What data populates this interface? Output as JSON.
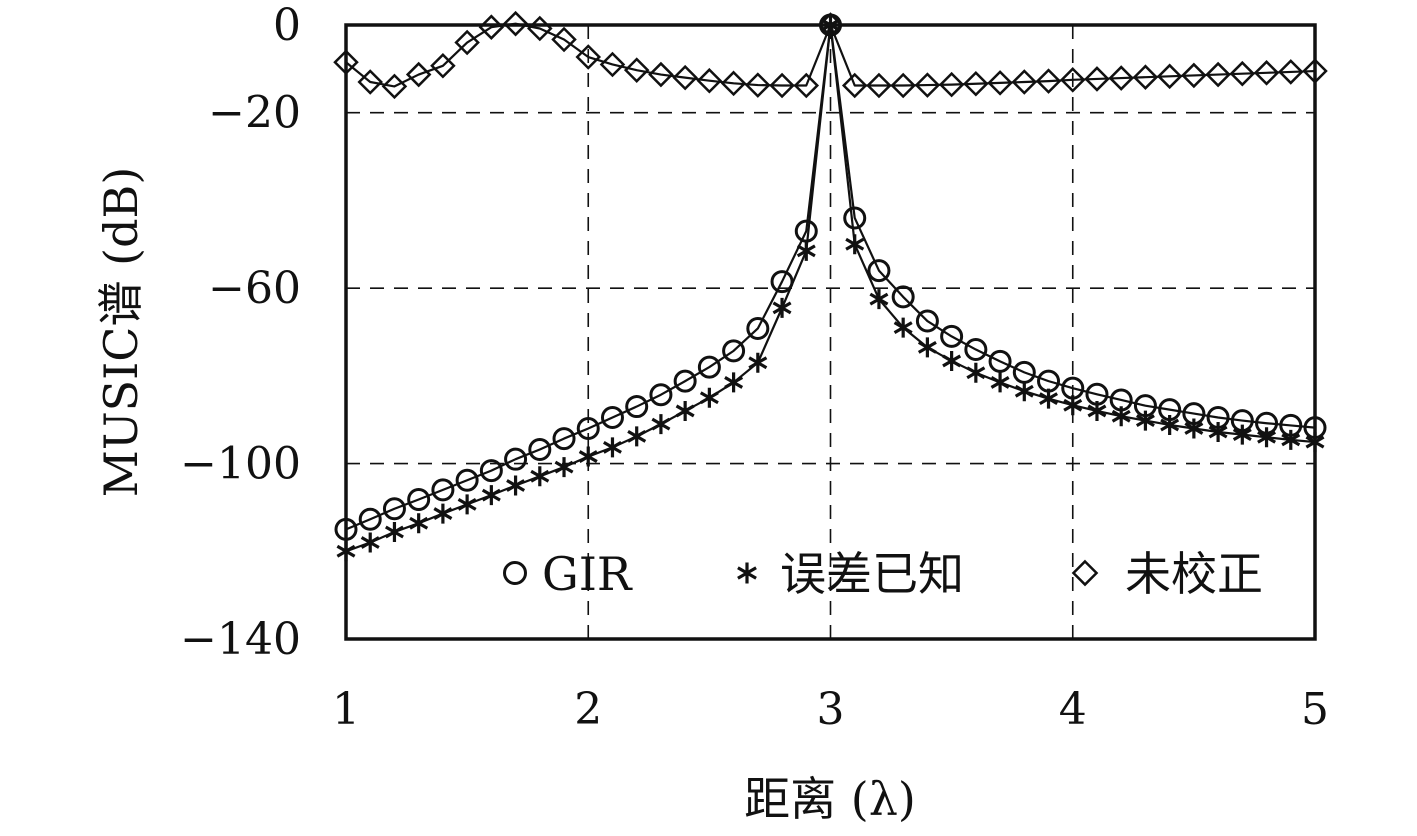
{
  "chart_data": {
    "type": "line",
    "title": "",
    "xlabel": "距离 (λ)",
    "ylabel": "MUSIC谱 (dB)",
    "xlim": [
      1,
      5
    ],
    "ylim": [
      -140,
      0
    ],
    "xticks": [
      1,
      2,
      3,
      4,
      5
    ],
    "yticks": [
      0,
      -20,
      -60,
      -100,
      -140
    ],
    "grid": {
      "vertical": [
        2,
        3,
        4
      ],
      "horizontal": [
        -20,
        -60,
        -100
      ],
      "style": "dashed"
    },
    "legend_position": "bottom-right",
    "series": [
      {
        "name": "GIR",
        "marker": "circle",
        "x": [
          1.0,
          1.1,
          1.2,
          1.3,
          1.4,
          1.5,
          1.6,
          1.7,
          1.8,
          1.9,
          2.0,
          2.1,
          2.2,
          2.3,
          2.4,
          2.5,
          2.6,
          2.7,
          2.8,
          2.9,
          3.0,
          3.1,
          3.2,
          3.3,
          3.4,
          3.5,
          3.6,
          3.7,
          3.8,
          3.9,
          4.0,
          4.1,
          4.2,
          4.3,
          4.4,
          4.5,
          4.6,
          4.7,
          4.8,
          4.9,
          5.0
        ],
        "values": [
          -115,
          -112.7,
          -110.3,
          -108.2,
          -106,
          -103.8,
          -101.6,
          -99,
          -96.8,
          -94.3,
          -92,
          -89.5,
          -87,
          -84.3,
          -81.2,
          -78,
          -74.3,
          -69.2,
          -58.5,
          -47,
          0,
          -44,
          -56,
          -62,
          -67.5,
          -71,
          -74,
          -76.7,
          -79.2,
          -81.2,
          -82.8,
          -84.2,
          -85.5,
          -86.8,
          -87.7,
          -88.6,
          -89.5,
          -90.2,
          -90.8,
          -91.3,
          -91.8
        ]
      },
      {
        "name": "误差已知",
        "marker": "asterisk",
        "x": [
          1.0,
          1.1,
          1.2,
          1.3,
          1.4,
          1.5,
          1.6,
          1.7,
          1.8,
          1.9,
          2.0,
          2.1,
          2.2,
          2.3,
          2.4,
          2.5,
          2.6,
          2.7,
          2.8,
          2.9,
          3.0,
          3.1,
          3.2,
          3.3,
          3.4,
          3.5,
          3.6,
          3.7,
          3.8,
          3.9,
          4.0,
          4.1,
          4.2,
          4.3,
          4.4,
          4.5,
          4.6,
          4.7,
          4.8,
          4.9,
          5.0
        ],
        "values": [
          -120,
          -118,
          -115.6,
          -113.6,
          -111.4,
          -109.3,
          -107.2,
          -105,
          -102.9,
          -100.8,
          -98.4,
          -96.3,
          -93.8,
          -91,
          -88,
          -85,
          -81.5,
          -77,
          -64.5,
          -51.5,
          0,
          -50,
          -62.5,
          -69,
          -73.5,
          -76.6,
          -79.3,
          -81.5,
          -83.5,
          -85.2,
          -86.7,
          -88,
          -89.2,
          -90.2,
          -91.2,
          -92,
          -92.8,
          -93.4,
          -94,
          -94.6,
          -95.1
        ]
      },
      {
        "name": "未校正",
        "marker": "diamond",
        "x": [
          1.0,
          1.1,
          1.2,
          1.3,
          1.4,
          1.5,
          1.6,
          1.7,
          1.8,
          1.9,
          2.0,
          2.1,
          2.2,
          2.3,
          2.4,
          2.5,
          2.6,
          2.7,
          2.8,
          2.9,
          3.0,
          3.1,
          3.2,
          3.3,
          3.4,
          3.5,
          3.6,
          3.7,
          3.8,
          3.9,
          4.0,
          4.1,
          4.2,
          4.3,
          4.4,
          4.5,
          4.6,
          4.7,
          4.8,
          4.9,
          5.0
        ],
        "values": [
          -8.5,
          -13,
          -14,
          -11.3,
          -9.3,
          -4,
          -0.5,
          0.3,
          -0.8,
          -3.3,
          -7.3,
          -9,
          -10.3,
          -11.3,
          -12,
          -12.7,
          -13.3,
          -13.7,
          -13.8,
          -13.8,
          0,
          -13.8,
          -13.8,
          -13.8,
          -13.7,
          -13.6,
          -13.4,
          -13.2,
          -13,
          -12.8,
          -12.5,
          -12.3,
          -12.1,
          -11.9,
          -11.7,
          -11.5,
          -11.3,
          -11.1,
          -10.9,
          -10.7,
          -10.5
        ]
      }
    ]
  }
}
